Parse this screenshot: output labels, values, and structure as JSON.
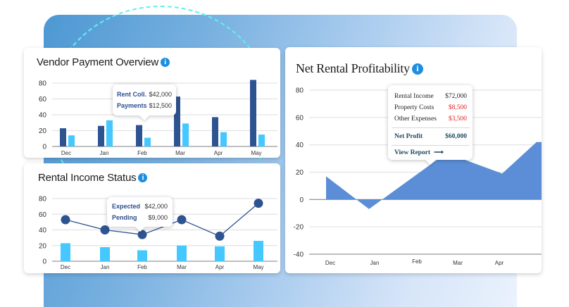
{
  "colors": {
    "dark_bar": "#2e5391",
    "light_bar": "#45c8ff",
    "area_fill": "#5b8ed6",
    "line": "#2e5391",
    "negative_value": "#e02020",
    "info_icon": "#1e8fe0"
  },
  "vendor_card": {
    "title": "Vendor Payment Overview",
    "info_icon": "info-icon",
    "tooltip": {
      "rows": [
        {
          "label": "Rent Coll.",
          "value": "$42,000"
        },
        {
          "label": "Payments",
          "value": "$12,500"
        }
      ]
    }
  },
  "rental_card": {
    "title": "Rental Income Status",
    "info_icon": "info-icon",
    "tooltip": {
      "rows": [
        {
          "label": "Expected",
          "value": "$42,000"
        },
        {
          "label": "Pending",
          "value": "$9,000"
        }
      ]
    }
  },
  "net_card": {
    "title": "Net Rental Profitability",
    "info_icon": "info-icon",
    "tooltip": {
      "rows": [
        {
          "label": "Rental Income",
          "value": "$72,000"
        },
        {
          "label": "Property Costs",
          "value": "$8,500"
        },
        {
          "label": "Other Expenses",
          "value": "$3,500"
        }
      ],
      "net_label": "Net Profit",
      "net_value": "$60,000",
      "link_label": "View Report",
      "link_icon": "arrow-right-icon"
    }
  },
  "chart_data": [
    {
      "type": "bar",
      "title": "Vendor Payment Overview",
      "categories": [
        "Dec",
        "Jan",
        "Feb",
        "Mar",
        "Apr",
        "May"
      ],
      "series": [
        {
          "name": "Rent Coll.",
          "values": [
            23,
            26,
            27,
            63,
            37,
            84
          ]
        },
        {
          "name": "Payments",
          "values": [
            14,
            33,
            11,
            29,
            18,
            15
          ]
        }
      ],
      "yticks": [
        0,
        20,
        40,
        60,
        80
      ],
      "ylim": [
        0,
        85
      ],
      "grid": true
    },
    {
      "type": "bar+line",
      "title": "Rental Income Status",
      "categories": [
        "Dec",
        "Jan",
        "Feb",
        "Mar",
        "Apr",
        "May"
      ],
      "series": [
        {
          "name": "Expected",
          "type": "line",
          "values": [
            53,
            40,
            34,
            53,
            32,
            74
          ]
        },
        {
          "name": "Pending",
          "type": "bar",
          "values": [
            23,
            18,
            14,
            20,
            19,
            26
          ]
        }
      ],
      "yticks": [
        0,
        20,
        40,
        60,
        80
      ],
      "ylim": [
        0,
        85
      ],
      "grid": true
    },
    {
      "type": "area",
      "title": "Net Rental Profitability",
      "categories": [
        "Dec",
        "Jan",
        "Feb",
        "Mar",
        "Apr"
      ],
      "points": [
        {
          "x": 0,
          "y": 17
        },
        {
          "x": 1,
          "y": -7
        },
        {
          "x": 2.8,
          "y": 34
        },
        {
          "x": 4.1,
          "y": 19
        },
        {
          "x": 4.9,
          "y": 42
        }
      ],
      "yticks": [
        -40,
        -20,
        0,
        20,
        40,
        60,
        80
      ],
      "ylim": [
        -40,
        80
      ],
      "grid": true
    }
  ]
}
